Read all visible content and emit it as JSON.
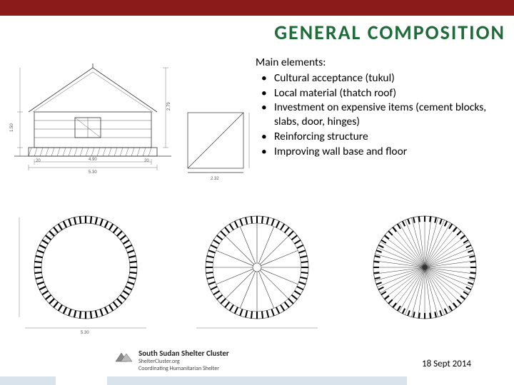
{
  "title": "GENERAL COMPOSITION",
  "heading": "Main elements:",
  "bullets": [
    "Cultural acceptance (tukul)",
    "Local material (thatch roof)",
    "Investment on expensive items (cement blocks, slabs, door, hinges)",
    "Reinforcing structure",
    "Improving wall base and floor"
  ],
  "footer": {
    "org": "South Sudan Shelter Cluster",
    "url": "ShelterCluster.org",
    "tagline": "Coordinating Humanitarian Shelter"
  },
  "date": "18 Sept 2014",
  "colors": {
    "top_bar": "#8b1a1a",
    "title": "#1f6b3a",
    "bottom_band": "#d8e3ec",
    "line": "#333333",
    "tick": "#000000"
  },
  "elevation": {
    "width_m": 5.3,
    "inner_w": 4.9,
    "wall_h": 1.5,
    "total_h": 2.79,
    "base_h": 0.32
  },
  "plans": {
    "outer_d": 5.3,
    "inner_d": 4.9,
    "spokes_plan2": 16,
    "spokes_plan3": 48,
    "block_ticks": 56
  }
}
